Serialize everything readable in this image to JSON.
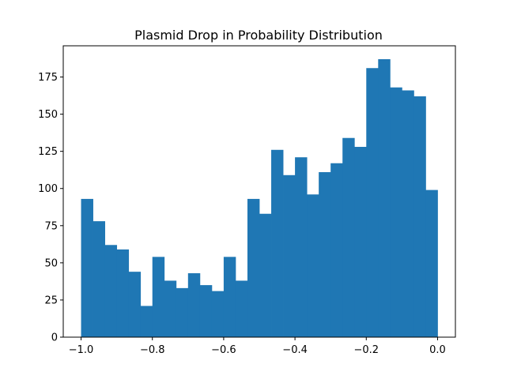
{
  "chart_data": {
    "type": "bar",
    "subtype": "histogram",
    "title": "Plasmid Drop in Probability Distribution",
    "xlabel": "",
    "ylabel": "",
    "bar_color": "#1f77b4",
    "xlim": [
      -1.05,
      0.05
    ],
    "ylim": [
      0,
      196
    ],
    "bin_start": -1.0,
    "bin_end": 0.0,
    "counts": [
      93,
      78,
      62,
      59,
      44,
      21,
      54,
      38,
      33,
      43,
      35,
      31,
      54,
      38,
      93,
      83,
      126,
      109,
      121,
      96,
      111,
      117,
      134,
      128,
      181,
      187,
      168,
      166,
      162,
      99
    ],
    "x_ticks": [
      {
        "value": -1.0,
        "label": "−1.0"
      },
      {
        "value": -0.8,
        "label": "−0.8"
      },
      {
        "value": -0.6,
        "label": "−0.6"
      },
      {
        "value": -0.4,
        "label": "−0.4"
      },
      {
        "value": -0.2,
        "label": "−0.2"
      },
      {
        "value": 0.0,
        "label": "0.0"
      }
    ],
    "y_ticks": [
      {
        "value": 0,
        "label": "0"
      },
      {
        "value": 25,
        "label": "25"
      },
      {
        "value": 50,
        "label": "50"
      },
      {
        "value": 75,
        "label": "75"
      },
      {
        "value": 100,
        "label": "100"
      },
      {
        "value": 125,
        "label": "125"
      },
      {
        "value": 150,
        "label": "150"
      },
      {
        "value": 175,
        "label": "175"
      }
    ],
    "grid": false,
    "legend": "none"
  }
}
